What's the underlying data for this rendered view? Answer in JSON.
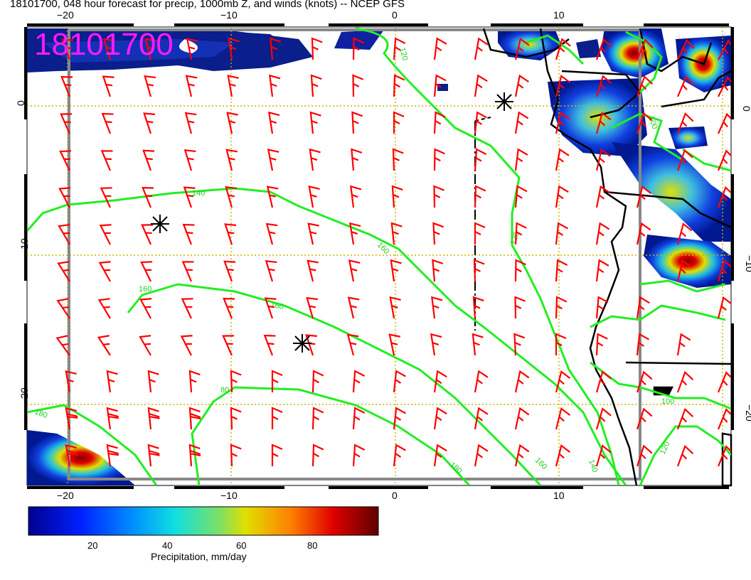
{
  "title": "18101700, 048 hour forecast for precip, 1000mb Z, and winds (knots) -- NCEP GFS",
  "stamp": "18101700",
  "axes": {
    "x_ticks": [
      "−20",
      "−10",
      "0",
      "10"
    ],
    "y_ticks": [
      "0",
      "−10",
      "−20"
    ]
  },
  "contour_labels": [
    "120",
    "140",
    "160",
    "160",
    "160",
    "180",
    "180",
    "160",
    "140",
    "120",
    "100",
    "100",
    "80",
    "120"
  ],
  "colorbar": {
    "ticks": [
      "20",
      "40",
      "60",
      "80"
    ],
    "label": "Precipitation, mm/day"
  },
  "colors": {
    "stamp": "#ff1aff",
    "contour": "#00e600",
    "barb": "#ff0000",
    "coast": "#000000",
    "grid": "#c8b400"
  }
}
